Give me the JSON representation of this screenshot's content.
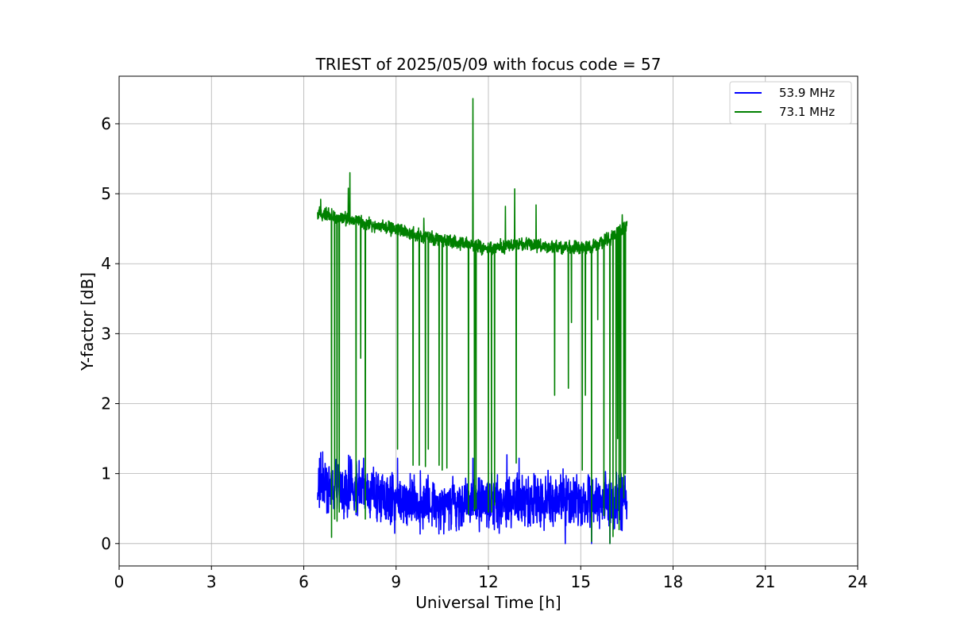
{
  "chart_data": {
    "type": "line",
    "title": "TRIEST of 2025/05/09 with focus code = 57",
    "xlabel": "Universal Time [h]",
    "ylabel": "Y-factor [dB]",
    "xlim": [
      0,
      24
    ],
    "ylim": [
      -0.32,
      6.68
    ],
    "xticks": [
      0,
      3,
      6,
      9,
      12,
      15,
      18,
      21,
      24
    ],
    "yticks": [
      0,
      1,
      2,
      3,
      4,
      5,
      6
    ],
    "grid": true,
    "legend": "top-right",
    "series": [
      {
        "name": "53.9 MHz",
        "color": "#0000ff",
        "x_start": 6.45,
        "x_end": 16.5,
        "baseline": [
          [
            6.45,
            0.85
          ],
          [
            7.5,
            0.8
          ],
          [
            9.0,
            0.6
          ],
          [
            10.5,
            0.58
          ],
          [
            12.0,
            0.6
          ],
          [
            13.5,
            0.62
          ],
          [
            15.0,
            0.62
          ],
          [
            16.5,
            0.62
          ]
        ],
        "spread": 0.32,
        "spikes": [
          [
            6.55,
            1.3
          ],
          [
            7.05,
            1.2
          ],
          [
            7.55,
            1.2
          ],
          [
            9.05,
            1.22
          ],
          [
            11.5,
            1.22
          ],
          [
            12.6,
            1.27
          ],
          [
            13.0,
            1.22
          ],
          [
            14.5,
            0.0
          ],
          [
            15.35,
            0.0
          ],
          [
            15.95,
            0.0
          ]
        ]
      },
      {
        "name": "73.1 MHz",
        "color": "#008000",
        "x_start": 6.45,
        "x_end": 16.5,
        "baseline": [
          [
            6.45,
            4.72
          ],
          [
            7.0,
            4.68
          ],
          [
            8.0,
            4.58
          ],
          [
            9.0,
            4.48
          ],
          [
            10.0,
            4.38
          ],
          [
            11.0,
            4.3
          ],
          [
            12.0,
            4.22
          ],
          [
            13.0,
            4.28
          ],
          [
            14.0,
            4.25
          ],
          [
            15.0,
            4.22
          ],
          [
            15.5,
            4.26
          ],
          [
            16.0,
            4.38
          ],
          [
            16.5,
            4.55
          ]
        ],
        "spread": 0.08,
        "spikes": [
          [
            6.55,
            4.92
          ],
          [
            7.45,
            5.08
          ],
          [
            7.5,
            5.3
          ],
          [
            9.9,
            4.65
          ],
          [
            11.5,
            6.36
          ],
          [
            12.55,
            4.82
          ],
          [
            12.85,
            5.07
          ],
          [
            13.55,
            4.84
          ],
          [
            16.35,
            4.7
          ]
        ],
        "dips": [
          [
            6.9,
            0.09
          ],
          [
            7.0,
            0.35
          ],
          [
            7.08,
            0.32
          ],
          [
            7.15,
            0.45
          ],
          [
            7.7,
            0.45
          ],
          [
            7.85,
            2.65
          ],
          [
            8.0,
            0.35
          ],
          [
            9.05,
            1.35
          ],
          [
            9.55,
            1.12
          ],
          [
            9.75,
            1.12
          ],
          [
            9.95,
            1.1
          ],
          [
            10.05,
            1.35
          ],
          [
            10.4,
            1.12
          ],
          [
            10.5,
            1.05
          ],
          [
            10.65,
            1.08
          ],
          [
            11.35,
            0.42
          ],
          [
            11.55,
            0.47
          ],
          [
            11.6,
            0.5
          ],
          [
            12.0,
            0.45
          ],
          [
            12.1,
            0.45
          ],
          [
            12.2,
            0.55
          ],
          [
            12.9,
            1.15
          ],
          [
            14.15,
            2.12
          ],
          [
            14.6,
            2.22
          ],
          [
            14.7,
            3.16
          ],
          [
            15.05,
            1.05
          ],
          [
            15.15,
            2.12
          ],
          [
            15.35,
            0.03
          ],
          [
            15.55,
            3.2
          ],
          [
            15.75,
            0.4
          ],
          [
            15.95,
            0.0
          ],
          [
            16.05,
            0.1
          ],
          [
            16.15,
            0.5
          ],
          [
            16.2,
            1.5
          ],
          [
            16.25,
            0.2
          ],
          [
            16.3,
            0.8
          ],
          [
            16.4,
            0.65
          ],
          [
            16.45,
            1.0
          ]
        ]
      }
    ]
  }
}
